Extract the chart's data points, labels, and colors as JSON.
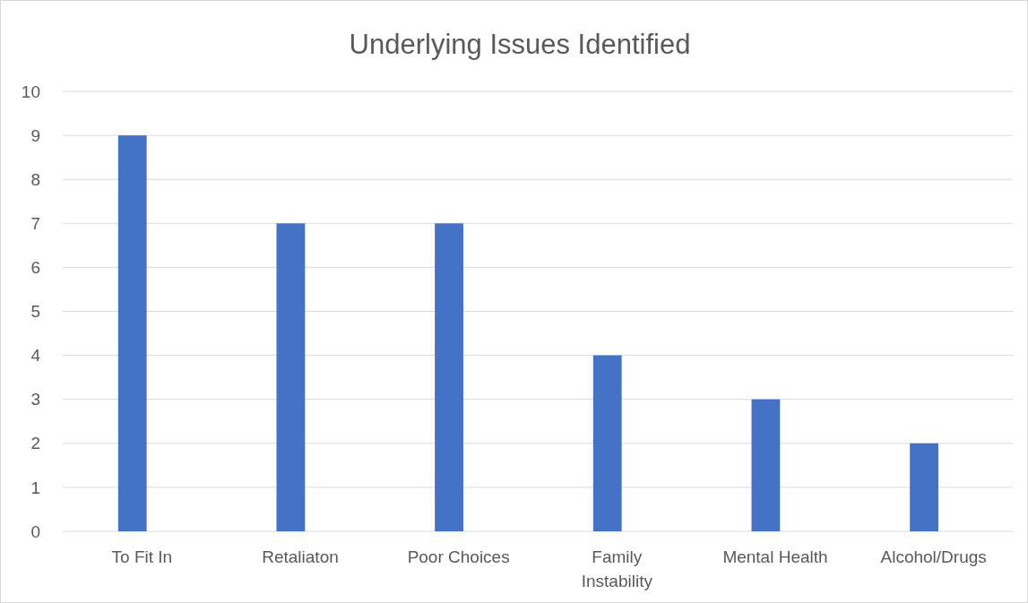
{
  "chart_data": {
    "type": "bar",
    "title": "Underlying Issues Identified",
    "categories": [
      "To Fit In",
      "Retaliaton",
      "Poor Choices",
      "Family Instability",
      "Mental Health",
      "Alcohol/Drugs"
    ],
    "values": [
      9,
      7,
      7,
      4,
      3,
      2
    ],
    "color": "#4472c4",
    "ylim": [
      0,
      10
    ],
    "yticks": [
      0,
      1,
      2,
      3,
      4,
      5,
      6,
      7,
      8,
      9,
      10
    ],
    "grid": "y"
  }
}
